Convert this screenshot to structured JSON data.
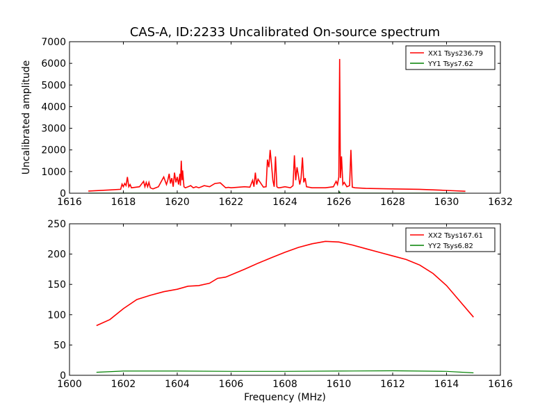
{
  "figure": {
    "title": "CAS-A, ID:2233 Uncalibrated On-source spectrum"
  },
  "colors": {
    "xx": "#ff0000",
    "yy": "#008000",
    "axes": "#000000",
    "background": "#ffffff"
  },
  "chart_data": [
    {
      "type": "line",
      "title": "CAS-A, ID:2233 Uncalibrated On-source spectrum",
      "xlabel": "",
      "ylabel": "Uncalibrated amplitude",
      "xlim": [
        1616,
        1632
      ],
      "ylim": [
        0,
        7000
      ],
      "xticks": [
        1616,
        1618,
        1620,
        1622,
        1624,
        1626,
        1628,
        1630,
        1632
      ],
      "yticks": [
        0,
        1000,
        2000,
        3000,
        4000,
        5000,
        6000,
        7000
      ],
      "grid": false,
      "legend_position": "top-right",
      "series": [
        {
          "name": "XX1 Tsys236.79",
          "color": "#ff0000",
          "x": [
            1616.7,
            1617.5,
            1617.9,
            1617.95,
            1618.0,
            1618.05,
            1618.1,
            1618.15,
            1618.2,
            1618.25,
            1618.3,
            1618.6,
            1618.75,
            1618.8,
            1618.85,
            1618.9,
            1618.95,
            1619.0,
            1619.1,
            1619.3,
            1619.5,
            1619.6,
            1619.65,
            1619.7,
            1619.75,
            1619.8,
            1619.85,
            1619.9,
            1619.95,
            1620.0,
            1620.05,
            1620.1,
            1620.12,
            1620.15,
            1620.18,
            1620.2,
            1620.25,
            1620.3,
            1620.4,
            1620.5,
            1620.6,
            1620.7,
            1620.8,
            1620.9,
            1621.0,
            1621.2,
            1621.4,
            1621.6,
            1621.8,
            1621.9,
            1622.0,
            1622.5,
            1622.7,
            1622.8,
            1622.85,
            1622.9,
            1622.95,
            1623.0,
            1623.2,
            1623.3,
            1623.35,
            1623.4,
            1623.45,
            1623.5,
            1623.55,
            1623.6,
            1623.65,
            1623.7,
            1623.75,
            1623.8,
            1624.0,
            1624.2,
            1624.3,
            1624.35,
            1624.4,
            1624.45,
            1624.5,
            1624.55,
            1624.6,
            1624.65,
            1624.7,
            1624.75,
            1624.8,
            1625.0,
            1625.5,
            1625.8,
            1625.9,
            1625.95,
            1626.0,
            1626.03,
            1626.06,
            1626.1,
            1626.15,
            1626.2,
            1626.3,
            1626.4,
            1626.45,
            1626.5,
            1626.6,
            1627.0,
            1628.0,
            1629.0,
            1630.0,
            1630.7
          ],
          "y": [
            100,
            150,
            180,
            420,
            300,
            450,
            350,
            750,
            300,
            400,
            250,
            300,
            550,
            300,
            500,
            300,
            500,
            250,
            200,
            300,
            750,
            400,
            600,
            900,
            450,
            700,
            300,
            950,
            500,
            750,
            400,
            900,
            350,
            1500,
            600,
            1050,
            300,
            250,
            300,
            350,
            250,
            300,
            250,
            300,
            350,
            300,
            450,
            480,
            250,
            270,
            250,
            300,
            280,
            600,
            300,
            950,
            400,
            650,
            280,
            300,
            1550,
            1200,
            2000,
            1350,
            600,
            300,
            1700,
            300,
            250,
            250,
            300,
            250,
            350,
            1750,
            600,
            1200,
            800,
            400,
            700,
            1650,
            500,
            700,
            300,
            250,
            250,
            300,
            550,
            400,
            750,
            6200,
            700,
            1700,
            400,
            500,
            300,
            350,
            2000,
            280,
            250,
            220,
            200,
            180,
            130,
            90
          ]
        },
        {
          "name": "YY1 Tsys7.62",
          "color": "#008000",
          "x": [
            1616.7,
            1620,
            1623,
            1626,
            1626.03,
            1626.06,
            1628,
            1630.7
          ],
          "y": [
            8,
            8,
            8,
            8,
            60,
            8,
            8,
            8
          ]
        }
      ]
    },
    {
      "type": "line",
      "title": "",
      "xlabel": "Frequency (MHz)",
      "ylabel": "",
      "xlim": [
        1600,
        1616
      ],
      "ylim": [
        0,
        250
      ],
      "xticks": [
        1600,
        1602,
        1604,
        1606,
        1608,
        1610,
        1612,
        1614,
        1616
      ],
      "yticks": [
        0,
        50,
        100,
        150,
        200,
        250
      ],
      "grid": false,
      "legend_position": "top-right",
      "series": [
        {
          "name": "XX2 Tsys167.61",
          "color": "#ff0000",
          "x": [
            1601.0,
            1601.5,
            1602.0,
            1602.5,
            1603.0,
            1603.5,
            1604.0,
            1604.4,
            1604.8,
            1605.2,
            1605.5,
            1605.8,
            1606.5,
            1607.0,
            1607.5,
            1608.0,
            1608.5,
            1609.0,
            1609.5,
            1610.0,
            1610.5,
            1611.0,
            1611.5,
            1612.0,
            1612.5,
            1613.0,
            1613.5,
            1614.0,
            1614.5,
            1615.0
          ],
          "y": [
            82,
            92,
            110,
            125,
            132,
            138,
            142,
            147,
            148,
            152,
            160,
            162,
            175,
            185,
            194,
            203,
            211,
            217,
            221,
            220,
            215,
            209,
            203,
            197,
            191,
            182,
            168,
            148,
            122,
            96
          ]
        },
        {
          "name": "YY2 Tsys6.82",
          "color": "#008000",
          "x": [
            1601.0,
            1602.0,
            1604.0,
            1606.0,
            1608.0,
            1610.0,
            1612.0,
            1614.0,
            1615.0
          ],
          "y": [
            5,
            7,
            7,
            6.5,
            6.5,
            7,
            7.5,
            6.5,
            4
          ]
        }
      ]
    }
  ]
}
